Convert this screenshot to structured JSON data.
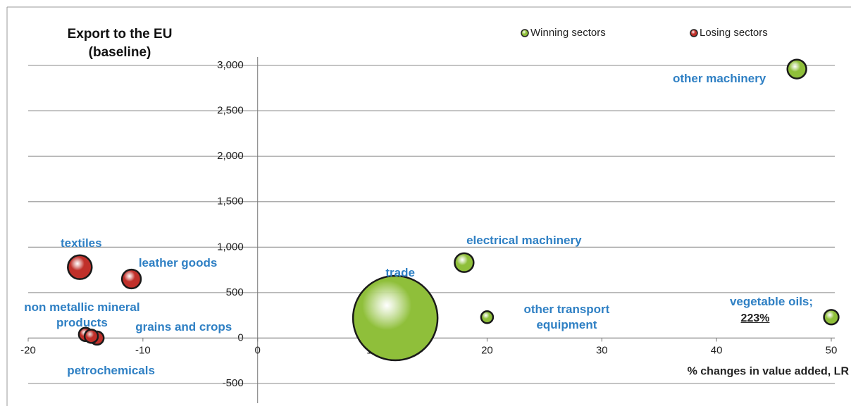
{
  "chart_data": {
    "type": "bubble",
    "title": "Export to the EU",
    "subtitle": "(baseline)",
    "x_label": "% changes in value added, LR",
    "xlim": [
      -20,
      50
    ],
    "ylim": [
      -500,
      3000
    ],
    "xticks": [
      -20,
      -10,
      0,
      10,
      20,
      30,
      40,
      50
    ],
    "yticks": [
      -500,
      0,
      500,
      {
        "value": 1000,
        "label": "1,000"
      },
      {
        "value": 1500,
        "label": "1,500"
      },
      {
        "value": 2000,
        "label": "2,000"
      },
      {
        "value": 2500,
        "label": "2,500"
      },
      {
        "value": 3000,
        "label": "3,000"
      }
    ],
    "grid": true,
    "legend": "top-right",
    "series": [
      {
        "name": "Winning sectors",
        "color": "#8fbf3a",
        "labels": [
          "other machinery",
          "electrical machinery",
          "trade",
          "other transport equipment",
          "vegetable oils;"
        ],
        "x": [
          47,
          18,
          12,
          20,
          50
        ],
        "values": [
          2960,
          830,
          220,
          230,
          230
        ],
        "sizes": [
          5,
          5,
          100,
          2,
          3
        ]
      },
      {
        "name": "Losing sectors",
        "color": "#c0302a",
        "labels": [
          "textiles",
          "leather goods",
          "non metallic mineral products",
          "grains and crops",
          "petrochemicals"
        ],
        "x": [
          -15.5,
          -11,
          -15,
          -14,
          -14.5
        ],
        "values": [
          780,
          650,
          40,
          0,
          20
        ],
        "sizes": [
          8,
          5,
          2.5,
          2.5,
          2.5
        ]
      }
    ],
    "annotation": "223%"
  }
}
